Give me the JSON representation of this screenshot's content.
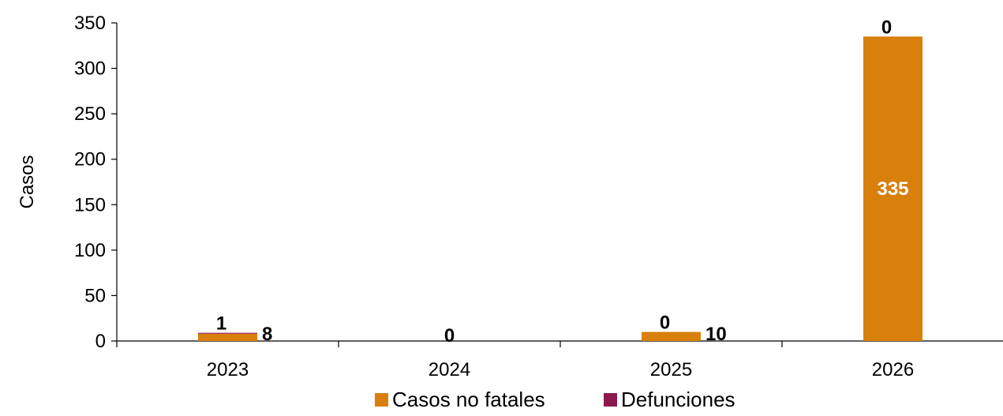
{
  "chart_data": {
    "type": "bar",
    "categories": [
      "2023",
      "2024",
      "2025",
      "2026"
    ],
    "series": [
      {
        "name": "Casos no fatales",
        "color": "#D97F0B",
        "values": [
          8,
          0,
          10,
          335
        ],
        "labels": [
          "8",
          "0",
          "10",
          "335"
        ]
      },
      {
        "name": "Defunciones",
        "color": "#8B1A4F",
        "values": [
          1,
          0,
          0,
          0
        ],
        "labels": [
          "1",
          "",
          "0",
          "0"
        ]
      }
    ],
    "ylabel": "Casos",
    "ylim": [
      0,
      350
    ],
    "yticks": [
      "0",
      "50",
      "100",
      "150",
      "200",
      "250",
      "300",
      "350"
    ],
    "legend_position": "bottom",
    "grid": false,
    "stacked": true
  }
}
